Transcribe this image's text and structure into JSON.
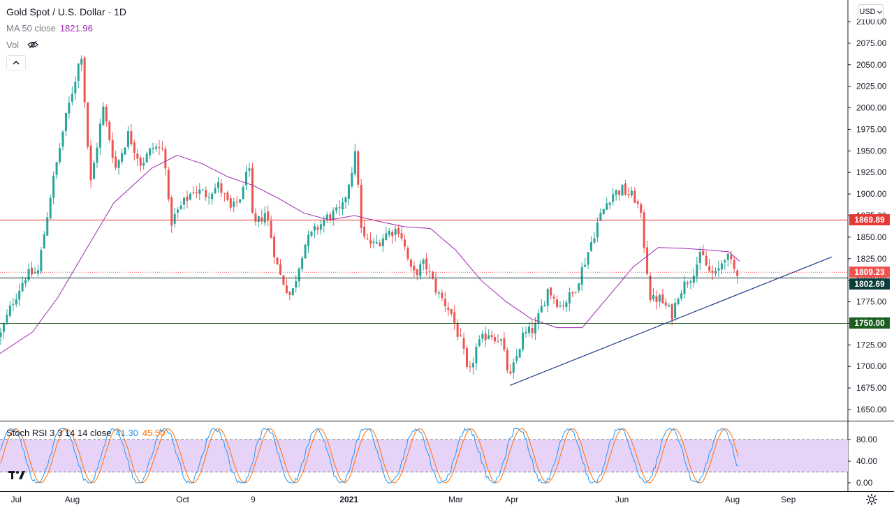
{
  "header": {
    "symbol_title": "Gold Spot / U.S. Dollar · 1D",
    "ma_label": "MA 50 close",
    "ma_value": "1821.96",
    "vol_label": "Vol",
    "currency_button": "USD"
  },
  "icons": {
    "hide_eye": "eye-crossed-icon",
    "collapse": "chevron-up-icon",
    "logo": "tradingview-logo-icon",
    "settings": "gear-icon"
  },
  "price_badges": {
    "resistance": "1869.89",
    "last_price": "1809.23",
    "support_upper": "1802.69",
    "support_lower": "1750.00"
  },
  "rsi_legend": {
    "label": "Stoch RSI 3 3 14 14 close",
    "k_value": "41.30",
    "d_value": "45.50"
  },
  "colors": {
    "up": "#26a69a",
    "down": "#ef5350",
    "ma": "#9c27b0",
    "resistance_line": "#e53935",
    "support_line": "#1b5e20",
    "level_line": "#0b3d3a",
    "trend_line": "#1e3a8a",
    "rsi_k": "#2196f3",
    "rsi_d": "#ff6d00",
    "rsi_band": "#e8d3f8"
  },
  "chart_data": {
    "type": "candlestick",
    "symbol": "Gold Spot / U.S. Dollar",
    "interval": "1D",
    "y_axis_ticks": [
      "2100.00",
      "2075.00",
      "2050.00",
      "2025.00",
      "2000.00",
      "1975.00",
      "1950.00",
      "1925.00",
      "1900.00",
      "1875.00",
      "1850.00",
      "1825.00",
      "1800.00",
      "1775.00",
      "1750.00",
      "1725.00",
      "1700.00",
      "1675.00",
      "1650.00"
    ],
    "ylim": [
      1640,
      2105
    ],
    "x_axis_ticks": [
      "Jul",
      "Aug",
      "Oct",
      "9",
      "2021",
      "Mar",
      "Apr",
      "Jun",
      "Aug",
      "Sep"
    ],
    "close_path": [
      {
        "x": "2020-06-22",
        "close": 1735
      },
      {
        "x": "2020-06-29",
        "close": 1775
      },
      {
        "x": "2020-07-06",
        "close": 1805
      },
      {
        "x": "2020-07-13",
        "close": 1810
      },
      {
        "x": "2020-07-20",
        "close": 1900
      },
      {
        "x": "2020-07-27",
        "close": 1975
      },
      {
        "x": "2020-08-06",
        "close": 2065
      },
      {
        "x": "2020-08-11",
        "close": 1910
      },
      {
        "x": "2020-08-18",
        "close": 2000
      },
      {
        "x": "2020-08-25",
        "close": 1930
      },
      {
        "x": "2020-09-01",
        "close": 1970
      },
      {
        "x": "2020-09-08",
        "close": 1935
      },
      {
        "x": "2020-09-15",
        "close": 1955
      },
      {
        "x": "2020-09-21",
        "close": 1950
      },
      {
        "x": "2020-09-24",
        "close": 1865
      },
      {
        "x": "2020-09-30",
        "close": 1885
      },
      {
        "x": "2020-10-07",
        "close": 1905
      },
      {
        "x": "2020-10-14",
        "close": 1900
      },
      {
        "x": "2020-10-21",
        "close": 1910
      },
      {
        "x": "2020-10-28",
        "close": 1880
      },
      {
        "x": "2020-11-04",
        "close": 1905
      },
      {
        "x": "2020-11-06",
        "close": 1950
      },
      {
        "x": "2020-11-09",
        "close": 1860
      },
      {
        "x": "2020-11-16",
        "close": 1880
      },
      {
        "x": "2020-11-23",
        "close": 1810
      },
      {
        "x": "2020-11-30",
        "close": 1780
      },
      {
        "x": "2020-12-07",
        "close": 1840
      },
      {
        "x": "2020-12-14",
        "close": 1860
      },
      {
        "x": "2020-12-21",
        "close": 1875
      },
      {
        "x": "2020-12-28",
        "close": 1880
      },
      {
        "x": "2021-01-05",
        "close": 1950
      },
      {
        "x": "2021-01-08",
        "close": 1850
      },
      {
        "x": "2021-01-15",
        "close": 1840
      },
      {
        "x": "2021-01-22",
        "close": 1855
      },
      {
        "x": "2021-01-29",
        "close": 1860
      },
      {
        "x": "2021-02-05",
        "close": 1805
      },
      {
        "x": "2021-02-12",
        "close": 1820
      },
      {
        "x": "2021-02-19",
        "close": 1785
      },
      {
        "x": "2021-02-26",
        "close": 1765
      },
      {
        "x": "2021-03-05",
        "close": 1720
      },
      {
        "x": "2021-03-08",
        "close": 1685
      },
      {
        "x": "2021-03-12",
        "close": 1720
      },
      {
        "x": "2021-03-19",
        "close": 1740
      },
      {
        "x": "2021-03-26",
        "close": 1730
      },
      {
        "x": "2021-03-31",
        "close": 1685
      },
      {
        "x": "2021-04-07",
        "close": 1735
      },
      {
        "x": "2021-04-14",
        "close": 1745
      },
      {
        "x": "2021-04-21",
        "close": 1790
      },
      {
        "x": "2021-04-28",
        "close": 1770
      },
      {
        "x": "2021-05-05",
        "close": 1785
      },
      {
        "x": "2021-05-12",
        "close": 1825
      },
      {
        "x": "2021-05-19",
        "close": 1870
      },
      {
        "x": "2021-05-26",
        "close": 1900
      },
      {
        "x": "2021-06-01",
        "close": 1905
      },
      {
        "x": "2021-06-08",
        "close": 1895
      },
      {
        "x": "2021-06-11",
        "close": 1880
      },
      {
        "x": "2021-06-17",
        "close": 1775
      },
      {
        "x": "2021-06-21",
        "close": 1780
      },
      {
        "x": "2021-06-29",
        "close": 1760
      },
      {
        "x": "2021-07-02",
        "close": 1785
      },
      {
        "x": "2021-07-09",
        "close": 1805
      },
      {
        "x": "2021-07-15",
        "close": 1830
      },
      {
        "x": "2021-07-19",
        "close": 1810
      },
      {
        "x": "2021-07-23",
        "close": 1805
      },
      {
        "x": "2021-07-28",
        "close": 1830
      },
      {
        "x": "2021-08-02",
        "close": 1812
      },
      {
        "x": "2021-08-05",
        "close": 1809
      }
    ],
    "ma50_path": [
      {
        "x": "2020-06-22",
        "v": 1715
      },
      {
        "x": "2020-07-10",
        "v": 1740
      },
      {
        "x": "2020-07-24",
        "v": 1780
      },
      {
        "x": "2020-08-07",
        "v": 1830
      },
      {
        "x": "2020-08-24",
        "v": 1890
      },
      {
        "x": "2020-09-14",
        "v": 1930
      },
      {
        "x": "2020-09-28",
        "v": 1945
      },
      {
        "x": "2020-10-12",
        "v": 1935
      },
      {
        "x": "2020-10-26",
        "v": 1920
      },
      {
        "x": "2020-11-09",
        "v": 1910
      },
      {
        "x": "2020-11-23",
        "v": 1895
      },
      {
        "x": "2020-12-07",
        "v": 1878
      },
      {
        "x": "2020-12-21",
        "v": 1870
      },
      {
        "x": "2021-01-04",
        "v": 1875
      },
      {
        "x": "2021-01-18",
        "v": 1868
      },
      {
        "x": "2021-02-01",
        "v": 1862
      },
      {
        "x": "2021-02-15",
        "v": 1860
      },
      {
        "x": "2021-03-01",
        "v": 1835
      },
      {
        "x": "2021-03-15",
        "v": 1800
      },
      {
        "x": "2021-03-29",
        "v": 1775
      },
      {
        "x": "2021-04-12",
        "v": 1755
      },
      {
        "x": "2021-04-26",
        "v": 1745
      },
      {
        "x": "2021-05-10",
        "v": 1745
      },
      {
        "x": "2021-05-24",
        "v": 1780
      },
      {
        "x": "2021-06-07",
        "v": 1815
      },
      {
        "x": "2021-06-21",
        "v": 1838
      },
      {
        "x": "2021-07-05",
        "v": 1837
      },
      {
        "x": "2021-07-19",
        "v": 1835
      },
      {
        "x": "2021-07-30",
        "v": 1833
      },
      {
        "x": "2021-08-05",
        "v": 1822
      }
    ],
    "horizontal_levels": [
      1869.89,
      1802.69,
      1750.0
    ],
    "last_price_line": 1809.23,
    "trendline": {
      "from": {
        "x": "2021-03-31",
        "v": 1678
      },
      "to": {
        "x": "2021-09-25",
        "v": 1827
      }
    },
    "stoch_rsi": {
      "label": "Stoch RSI 3 3 14 14 close",
      "k": 41.3,
      "d": 45.5,
      "ticks": [
        "80.00",
        "40.00",
        "0.00"
      ],
      "band": [
        20,
        80
      ],
      "ylim": [
        -8,
        108
      ]
    }
  }
}
